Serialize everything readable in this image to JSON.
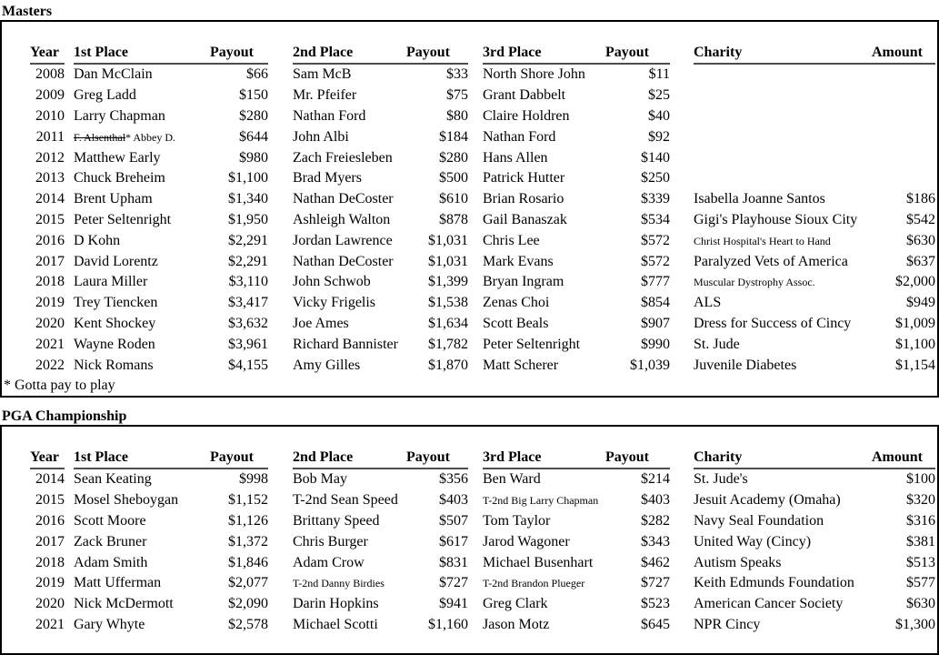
{
  "masters": {
    "title": "Masters",
    "columns": [
      "Year",
      "1st Place",
      "Payout",
      "2nd Place",
      "Payout",
      "3rd Place",
      "Payout",
      "Charity",
      "Amount"
    ],
    "rows": [
      [
        "2008",
        "Dan McClain",
        "$66",
        "Sam McB",
        "$33",
        "North Shore John",
        "$11",
        "",
        ""
      ],
      [
        "2009",
        "Greg Ladd",
        "$150",
        "Mr. Pfeifer",
        "$75",
        "Grant Dabbelt",
        "$25",
        "",
        ""
      ],
      [
        "2010",
        "Larry Chapman",
        "$280",
        "Nathan Ford",
        "$80",
        "Claire Holdren",
        "$40",
        "",
        ""
      ],
      [
        "2011",
        {
          "strike": "F. Alsenthal",
          "rest": "* Abbey D.",
          "small": true
        },
        "$644",
        "John Albi",
        "$184",
        "Nathan Ford",
        "$92",
        "",
        ""
      ],
      [
        "2012",
        "Matthew Early",
        "$980",
        "Zach Freiesleben",
        "$280",
        "Hans Allen",
        "$140",
        "",
        ""
      ],
      [
        "2013",
        "Chuck Breheim",
        "$1,100",
        "Brad Myers",
        "$500",
        "Patrick Hutter",
        "$250",
        "",
        ""
      ],
      [
        "2014",
        "Brent Upham",
        "$1,340",
        "Nathan DeCoster",
        "$610",
        "Brian Rosario",
        "$339",
        "Isabella Joanne Santos",
        "$186"
      ],
      [
        "2015",
        "Peter Seltenright",
        "$1,950",
        "Ashleigh Walton",
        "$878",
        "Gail Banaszak",
        "$534",
        "Gigi's Playhouse Sioux City",
        "$542"
      ],
      [
        "2016",
        "D Kohn",
        "$2,291",
        "Jordan Lawrence",
        "$1,031",
        "Chris Lee",
        "$572",
        {
          "text": "Christ Hospital's Heart to Hand",
          "small": true
        },
        "$630"
      ],
      [
        "2017",
        "David Lorentz",
        "$2,291",
        "Nathan DeCoster",
        "$1,031",
        "Mark Evans",
        "$572",
        "Paralyzed Vets of America",
        "$637"
      ],
      [
        "2018",
        "Laura Miller",
        "$3,110",
        "John Schwob",
        "$1,399",
        "Bryan Ingram",
        "$777",
        {
          "text": "Muscular Dystrophy Assoc.",
          "small": true
        },
        "$2,000"
      ],
      [
        "2019",
        "Trey Tiencken",
        "$3,417",
        "Vicky Frigelis",
        "$1,538",
        "Zenas Choi",
        "$854",
        "ALS",
        "$949"
      ],
      [
        "2020",
        "Kent Shockey",
        "$3,632",
        "Joe Ames",
        "$1,634",
        "Scott Beals",
        "$907",
        "Dress for Success of Cincy",
        "$1,009"
      ],
      [
        "2021",
        "Wayne Roden",
        "$3,961",
        "Richard Bannister",
        "$1,782",
        "Peter Seltenright",
        "$990",
        "St. Jude",
        "$1,100"
      ],
      [
        "2022",
        "Nick Romans",
        "$4,155",
        "Amy Gilles",
        "$1,870",
        "Matt Scherer",
        "$1,039",
        "Juvenile Diabetes",
        "$1,154"
      ]
    ],
    "footnote": "* Gotta pay to play"
  },
  "pga": {
    "title": "PGA Championship",
    "columns": [
      "Year",
      "1st Place",
      "Payout",
      "2nd Place",
      "Payout",
      "3rd Place",
      "Payout",
      "Charity",
      "Amount"
    ],
    "rows": [
      [
        "2014",
        "Sean Keating",
        "$998",
        "Bob May",
        "$356",
        "Ben Ward",
        "$214",
        "St. Jude's",
        "$100"
      ],
      [
        "2015",
        "Mosel Sheboygan",
        "$1,152",
        "T-2nd Sean Speed",
        "$403",
        {
          "text": "T-2nd Big Larry Chapman",
          "small": true
        },
        "$403",
        "Jesuit Academy (Omaha)",
        "$320"
      ],
      [
        "2016",
        "Scott Moore",
        "$1,126",
        "Brittany Speed",
        "$507",
        "Tom Taylor",
        "$282",
        "Navy Seal Foundation",
        "$316"
      ],
      [
        "2017",
        "Zack Bruner",
        "$1,372",
        "Chris Burger",
        "$617",
        "Jarod Wagoner",
        "$343",
        "United Way (Cincy)",
        "$381"
      ],
      [
        "2018",
        "Adam Smith",
        "$1,846",
        "Adam Crow",
        "$831",
        "Michael Busenhart",
        "$462",
        "Autism Speaks",
        "$513"
      ],
      [
        "2019",
        "Matt Ufferman",
        "$2,077",
        {
          "text": "T-2nd Danny Birdies",
          "small": true
        },
        "$727",
        {
          "text": "T-2nd Brandon Plueger",
          "small": true
        },
        "$727",
        "Keith Edmunds Foundation",
        "$577"
      ],
      [
        "2020",
        "Nick McDermott",
        "$2,090",
        "Darin Hopkins",
        "$941",
        "Greg Clark",
        "$523",
        "American Cancer Society",
        "$630"
      ],
      [
        "2021",
        "Gary Whyte",
        "$2,578",
        "Michael Scotti",
        "$1,160",
        "Jason Motz",
        "$645",
        "NPR Cincy",
        "$1,300"
      ]
    ]
  },
  "colors": {
    "text": "#000000",
    "box_border": "#000000",
    "header_rule": "#4d4d4d",
    "background": "#ffffff"
  }
}
